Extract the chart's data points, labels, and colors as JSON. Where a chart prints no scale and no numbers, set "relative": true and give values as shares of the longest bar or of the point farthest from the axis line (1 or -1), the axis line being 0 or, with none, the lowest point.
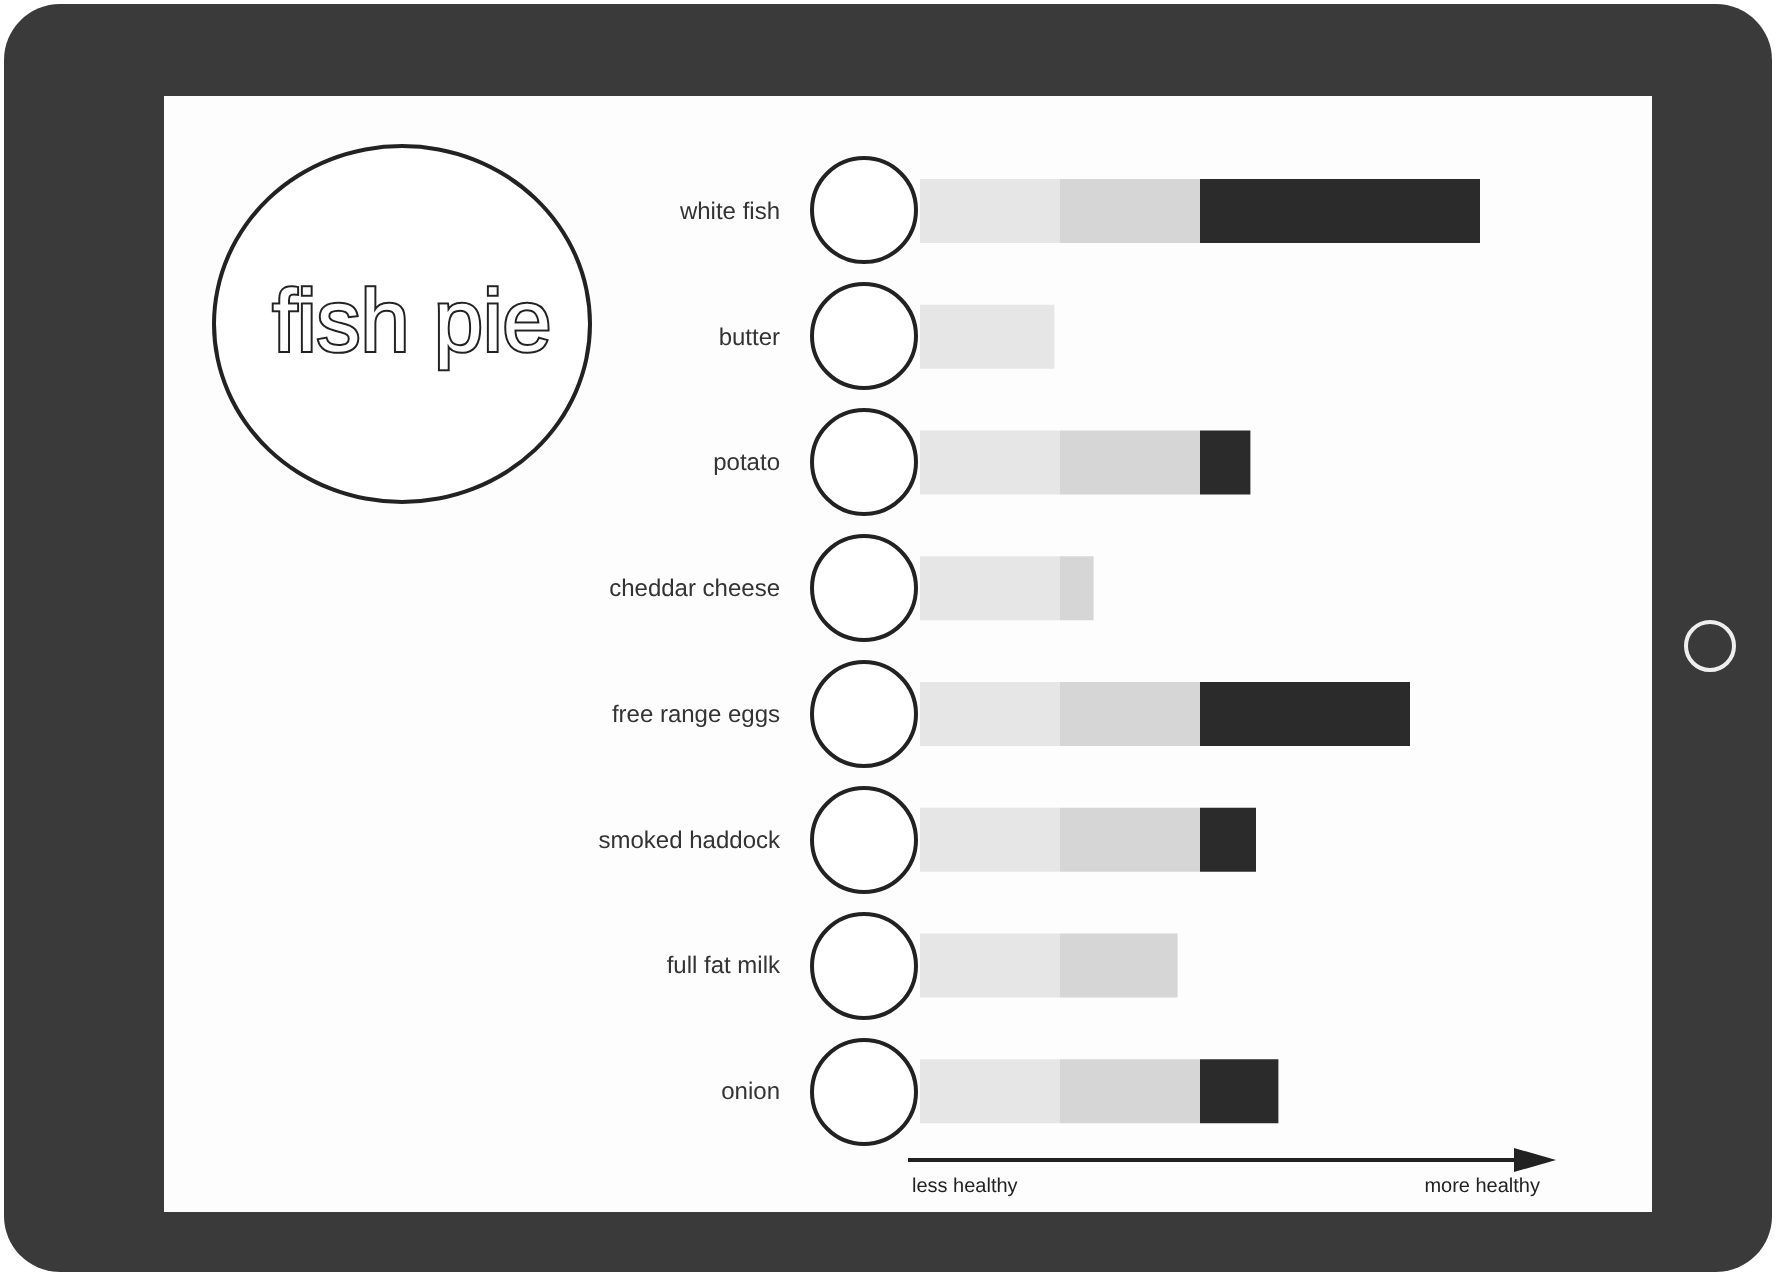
{
  "chart_data": {
    "type": "bar",
    "orientation": "horizontal",
    "stacked": true,
    "relative": true,
    "title": "fish pie",
    "categories": [
      "white fish",
      "butter",
      "potato",
      "cheddar cheese",
      "free range eggs",
      "smoked haddock",
      "full fat milk",
      "onion"
    ],
    "series": [
      {
        "color": "#e6e6e6",
        "values": [
          0.25,
          0.24,
          0.25,
          0.25,
          0.25,
          0.25,
          0.25,
          0.25
        ]
      },
      {
        "color": "#d6d6d6",
        "values": [
          0.25,
          null,
          0.25,
          0.06,
          0.25,
          0.25,
          0.21,
          0.25
        ]
      },
      {
        "color": "#2b2b2b",
        "values": [
          0.5,
          null,
          0.09,
          null,
          0.375,
          0.1,
          null,
          0.14
        ]
      }
    ],
    "annotations": [
      "less healthy",
      "more healthy"
    ]
  }
}
